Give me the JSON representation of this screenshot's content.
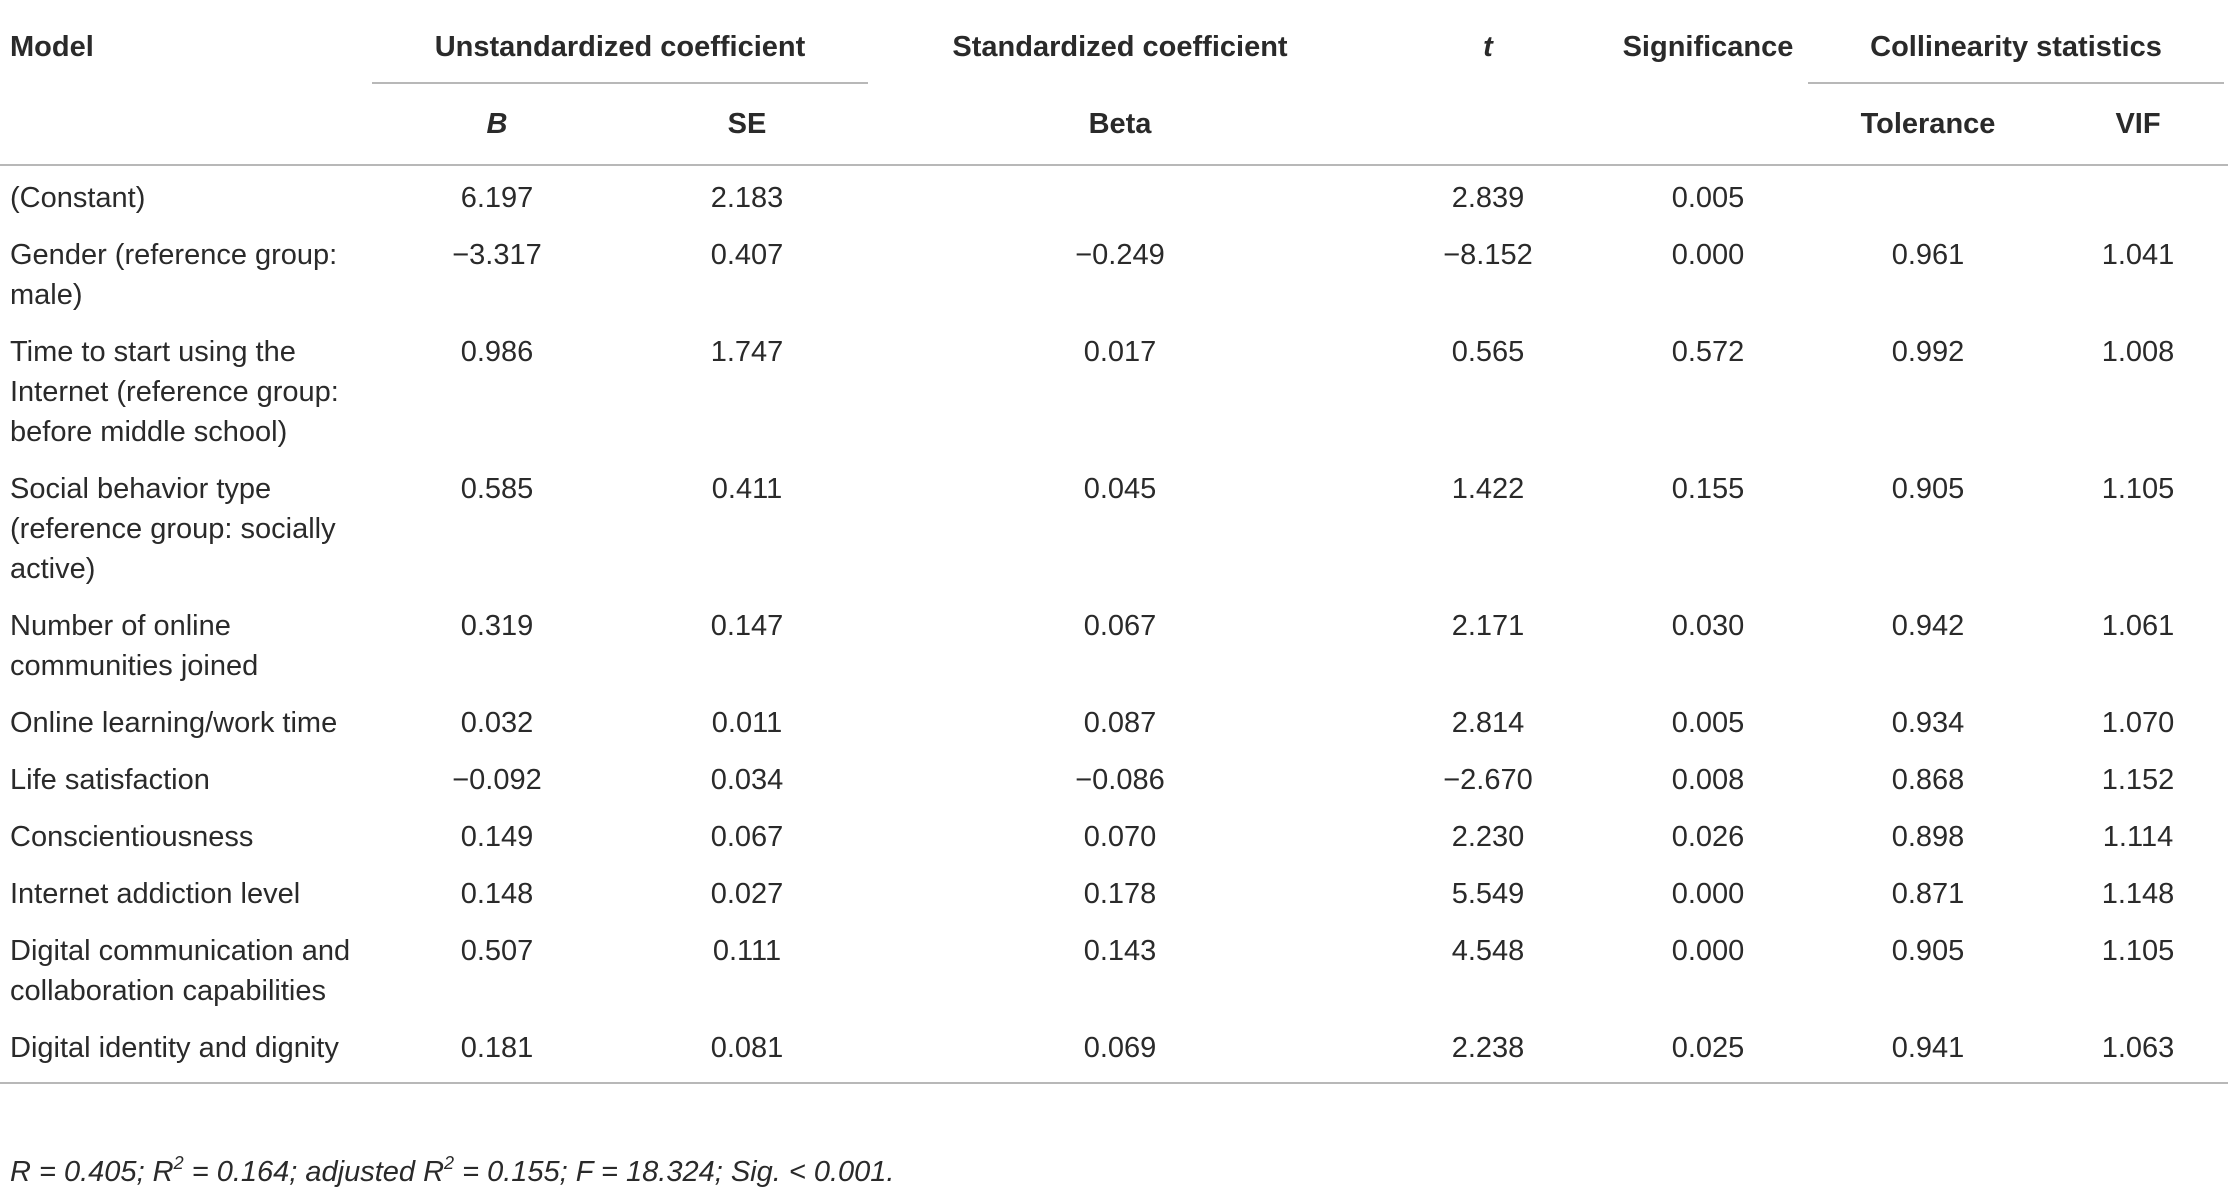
{
  "header": {
    "model": "Model",
    "unstandardized": "Unstandardized coefficient",
    "standardized": "Standardized coefficient",
    "t": "t",
    "significance": "Significance",
    "collinearity": "Collinearity statistics",
    "b": "B",
    "se": "SE",
    "beta": "Beta",
    "tolerance": "Tolerance",
    "vif": "VIF"
  },
  "rows": [
    {
      "label": "(Constant)",
      "b": "6.197",
      "se": "2.183",
      "beta": "",
      "t": "2.839",
      "sig": "0.005",
      "tol": "",
      "vif": ""
    },
    {
      "label": "Gender (reference group: male)",
      "b": "−3.317",
      "se": "0.407",
      "beta": "−0.249",
      "t": "−8.152",
      "sig": "0.000",
      "tol": "0.961",
      "vif": "1.041"
    },
    {
      "label": "Time to start using the Internet (reference group: before middle school)",
      "b": "0.986",
      "se": "1.747",
      "beta": "0.017",
      "t": "0.565",
      "sig": "0.572",
      "tol": "0.992",
      "vif": "1.008"
    },
    {
      "label": "Social behavior type (reference group: socially active)",
      "b": "0.585",
      "se": "0.411",
      "beta": "0.045",
      "t": "1.422",
      "sig": "0.155",
      "tol": "0.905",
      "vif": "1.105"
    },
    {
      "label": "Number of online communities joined",
      "b": "0.319",
      "se": "0.147",
      "beta": "0.067",
      "t": "2.171",
      "sig": "0.030",
      "tol": "0.942",
      "vif": "1.061"
    },
    {
      "label": "Online learning/work time",
      "b": "0.032",
      "se": "0.011",
      "beta": "0.087",
      "t": "2.814",
      "sig": "0.005",
      "tol": "0.934",
      "vif": "1.070"
    },
    {
      "label": "Life satisfaction",
      "b": "−0.092",
      "se": "0.034",
      "beta": "−0.086",
      "t": "−2.670",
      "sig": "0.008",
      "tol": "0.868",
      "vif": "1.152"
    },
    {
      "label": "Conscientiousness",
      "b": "0.149",
      "se": "0.067",
      "beta": "0.070",
      "t": "2.230",
      "sig": "0.026",
      "tol": "0.898",
      "vif": "1.114"
    },
    {
      "label": "Internet addiction level",
      "b": "0.148",
      "se": "0.027",
      "beta": "0.178",
      "t": "5.549",
      "sig": "0.000",
      "tol": "0.871",
      "vif": "1.148"
    },
    {
      "label": "Digital communication and collaboration capabilities",
      "b": "0.507",
      "se": "0.111",
      "beta": "0.143",
      "t": "4.548",
      "sig": "0.000",
      "tol": "0.905",
      "vif": "1.105"
    },
    {
      "label": "Digital identity and dignity",
      "b": "0.181",
      "se": "0.081",
      "beta": "0.069",
      "t": "2.238",
      "sig": "0.025",
      "tol": "0.941",
      "vif": "1.063"
    }
  ],
  "note": {
    "r": "R = 0.405; R",
    "sup1": "2",
    "r2": " = 0.164; adjusted R",
    "sup2": "2",
    "rest": " = 0.155; F = 18.324; Sig. < 0.001."
  }
}
